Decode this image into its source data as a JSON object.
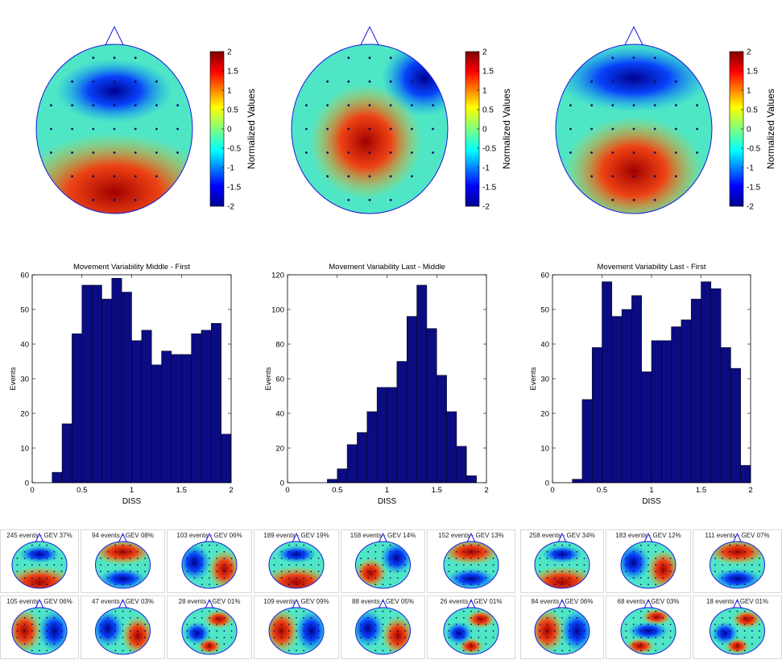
{
  "colors": {
    "bar": "#0b0b82",
    "outline": "#1a1adc",
    "panel_border": "#d8d8d8"
  },
  "colorbar": {
    "label": "Normalized Values",
    "ticks": [
      "2",
      "1.5",
      "1",
      "0.5",
      "0",
      "-0.5",
      "-1",
      "-1.5",
      "-2"
    ],
    "range": [
      -2,
      2
    ]
  },
  "topomaps": [
    {
      "pattern": "frontal-negative-posterior-positive"
    },
    {
      "pattern": "central-positive"
    },
    {
      "pattern": "frontal-negative-posterior-positive-strong"
    }
  ],
  "chart_data": [
    {
      "type": "bar",
      "title": "Movement Variability Middle - First",
      "xlabel": "DISS",
      "ylabel": "Events",
      "xlim": [
        0,
        2
      ],
      "ylim": [
        0,
        60
      ],
      "xticks": [
        "0",
        "0.5",
        "1",
        "1.5",
        "2"
      ],
      "yticks": [
        "0",
        "10",
        "20",
        "30",
        "40",
        "50",
        "60"
      ],
      "bin_width": 0.1,
      "x": [
        0.25,
        0.35,
        0.45,
        0.55,
        0.65,
        0.75,
        0.85,
        0.95,
        1.05,
        1.15,
        1.25,
        1.35,
        1.45,
        1.55,
        1.65,
        1.75,
        1.85,
        1.95
      ],
      "values": [
        3,
        17,
        43,
        57,
        57,
        53,
        59,
        55,
        41,
        44,
        34,
        38,
        37,
        37,
        43,
        44,
        46,
        14
      ]
    },
    {
      "type": "bar",
      "title": "Movement Variability Last - Middle",
      "xlabel": "DISS",
      "ylabel": "Events",
      "xlim": [
        0,
        2
      ],
      "ylim": [
        0,
        120
      ],
      "xticks": [
        "0",
        "0.5",
        "1",
        "1.5",
        "2"
      ],
      "yticks": [
        "0",
        "20",
        "40",
        "60",
        "80",
        "100",
        "120"
      ],
      "bin_width": 0.1,
      "x": [
        0.45,
        0.55,
        0.65,
        0.75,
        0.85,
        0.95,
        1.05,
        1.15,
        1.25,
        1.35,
        1.45,
        1.55,
        1.65,
        1.75,
        1.85
      ],
      "values": [
        2,
        8,
        22,
        29,
        41,
        55,
        55,
        70,
        96,
        114,
        89,
        62,
        41,
        21,
        4
      ]
    },
    {
      "type": "bar",
      "title": "Movement Variability Last - First",
      "xlabel": "DISS",
      "ylabel": "Events",
      "xlim": [
        0,
        2
      ],
      "ylim": [
        0,
        60
      ],
      "xticks": [
        "0",
        "0.5",
        "1",
        "1.5",
        "2"
      ],
      "yticks": [
        "0",
        "10",
        "20",
        "30",
        "40",
        "50",
        "60"
      ],
      "bin_width": 0.1,
      "x": [
        0.25,
        0.35,
        0.45,
        0.55,
        0.65,
        0.75,
        0.85,
        0.95,
        1.05,
        1.15,
        1.25,
        1.35,
        1.45,
        1.55,
        1.65,
        1.75,
        1.85,
        1.95
      ],
      "values": [
        1,
        24,
        39,
        58,
        48,
        50,
        54,
        32,
        41,
        41,
        45,
        47,
        53,
        58,
        56,
        39,
        33,
        5
      ]
    }
  ],
  "microstates": [
    {
      "label": "245 events - GEV 37%",
      "pattern": "frontal-negative-posterior-positive"
    },
    {
      "label": "94 events - GEV 08%",
      "pattern": "frontal-positive-posterior-negative"
    },
    {
      "label": "103 events - GEV 06%",
      "pattern": "left-negative-right-positive"
    },
    {
      "label": "189 events - GEV 19%",
      "pattern": "frontal-negative-posterior-positive"
    },
    {
      "label": "158 events - GEV 14%",
      "pattern": "right-negative-left-positive"
    },
    {
      "label": "152 events - GEV 13%",
      "pattern": "frontal-positive-posterior-negative"
    },
    {
      "label": "258 events - GEV 34%",
      "pattern": "frontal-negative-posterior-positive"
    },
    {
      "label": "183 events - GEV 12%",
      "pattern": "left-negative-right-positive"
    },
    {
      "label": "111 events - GEV 07%",
      "pattern": "frontal-positive-posterior-negative"
    },
    {
      "label": "105 events - GEV 06%",
      "pattern": "left-positive-right-negative"
    },
    {
      "label": "47 events - GEV 03%",
      "pattern": "left-negative-right-positive"
    },
    {
      "label": "28 events - GEV 01%",
      "pattern": "mixed"
    },
    {
      "label": "109 events - GEV 09%",
      "pattern": "left-positive-right-negative"
    },
    {
      "label": "88 events - GEV 05%",
      "pattern": "left-negative-right-positive"
    },
    {
      "label": "26 events - GEV 01%",
      "pattern": "mixed"
    },
    {
      "label": "84 events - GEV 06%",
      "pattern": "left-positive-right-negative"
    },
    {
      "label": "68 events - GEV 03%",
      "pattern": "central-negative"
    },
    {
      "label": "18 events - GEV 01%",
      "pattern": "mixed"
    }
  ]
}
